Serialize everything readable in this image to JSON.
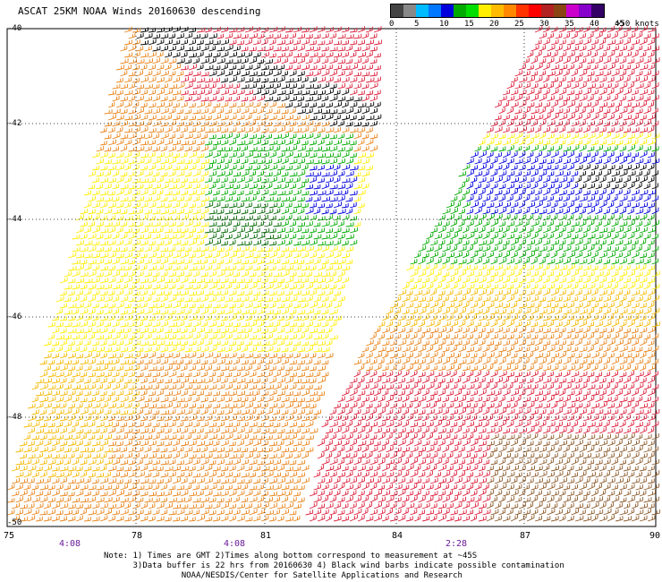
{
  "title": "ASCAT 25KM NOAA Winds 20160630 descending",
  "legend": {
    "unit_label": ">50 knots",
    "ticks": [
      "0",
      "5",
      "10",
      "15",
      "20",
      "25",
      "30",
      "35",
      "40",
      "45"
    ],
    "colors": [
      "#444444",
      "#888888",
      "#00bbff",
      "#0077ff",
      "#0000dd",
      "#00aa00",
      "#00dd00",
      "#ffee00",
      "#ffbb00",
      "#ff8800",
      "#ff3300",
      "#ff0000",
      "#b22222",
      "#8b4513",
      "#cc00cc",
      "#8800cc",
      "#330066"
    ]
  },
  "latitudes": [
    "-40",
    "-42",
    "-44",
    "-46",
    "-48",
    "-50"
  ],
  "longitudes": [
    "75",
    "78",
    "81",
    "84",
    "87",
    "90"
  ],
  "pass_times": [
    "4:08",
    "4:08",
    "2:28"
  ],
  "notes": [
    "Note: 1) Times are GMT 2)Times along bottom correspond to measurement at ~45S",
    "      3)Data buffer is 22 hrs from 20160630 4) Black wind barbs indicate possible contamination",
    "                NOAA/NESDIS/Center for Satellite Applications and Research"
  ],
  "palette": {
    "yellow": "#ffee00",
    "gold": "#f5b800",
    "orange": "#e8841a",
    "red": "#dc1f3c",
    "brown": "#8b5a2b",
    "green": "#00aa00",
    "darkgreen": "#006600",
    "blue": "#0000dd",
    "black": "#000000"
  }
}
